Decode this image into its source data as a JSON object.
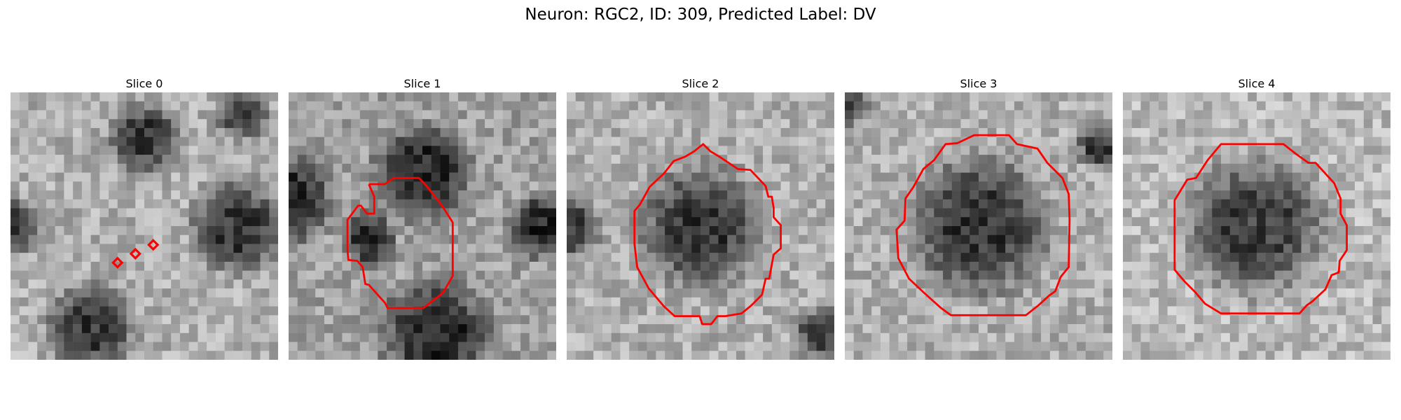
{
  "figure": {
    "title": "Neuron: RGC2, ID: 309, Predicted Label: DV"
  },
  "panels": [
    {
      "title": "Slice 0",
      "dark_blobs": [
        [
          0.5,
          0.17,
          0.16
        ],
        [
          0.85,
          0.5,
          0.21
        ],
        [
          0.3,
          0.88,
          0.2
        ],
        [
          0.0,
          0.5,
          0.13
        ],
        [
          0.87,
          0.08,
          0.12
        ]
      ],
      "base": 175,
      "contour": "markers"
    },
    {
      "title": "Slice 1",
      "dark_blobs": [
        [
          0.5,
          0.3,
          0.22
        ],
        [
          0.0,
          0.4,
          0.2
        ],
        [
          0.55,
          0.9,
          0.25
        ],
        [
          0.95,
          0.5,
          0.15
        ],
        [
          0.3,
          0.55,
          0.12
        ]
      ],
      "base": 160,
      "contour": "irregular"
    },
    {
      "title": "Slice 2",
      "dark_blobs": [
        [
          0.5,
          0.5,
          0.28
        ],
        [
          0.0,
          0.5,
          0.15
        ],
        [
          0.95,
          0.9,
          0.12
        ]
      ],
      "base": 175,
      "contour": "octagon-small"
    },
    {
      "title": "Slice 3",
      "dark_blobs": [
        [
          0.5,
          0.5,
          0.32
        ],
        [
          0.0,
          0.05,
          0.1
        ],
        [
          0.95,
          0.2,
          0.1
        ]
      ],
      "base": 175,
      "contour": "octagon-large"
    },
    {
      "title": "Slice 4",
      "dark_blobs": [
        [
          0.5,
          0.5,
          0.32
        ]
      ],
      "base": 185,
      "contour": "octagon-large2"
    }
  ],
  "colors": {
    "contour": "#ff0000"
  }
}
